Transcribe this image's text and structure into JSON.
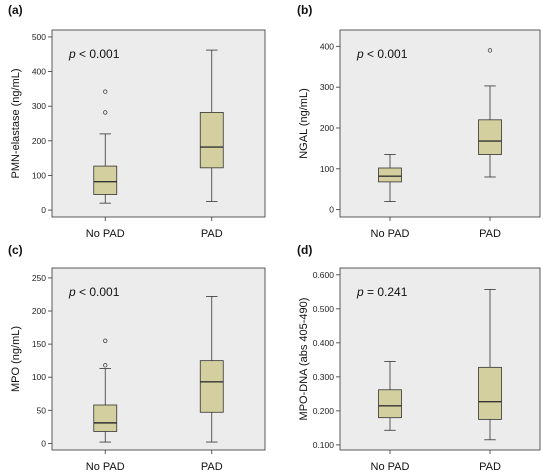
{
  "chart_data": [
    {
      "type": "box",
      "panel": "(a)",
      "ylabel": "PMN-elastase (ng/mL)",
      "ylim": [
        -20,
        520
      ],
      "yticks": [
        "0",
        "100",
        "200",
        "300",
        "400",
        "500"
      ],
      "categories": [
        "No PAD",
        "PAD"
      ],
      "annotation_prefix": "p",
      "annotation_value": " < 0.001",
      "boxes": [
        {
          "category": "No PAD",
          "min": 20,
          "q1": 45,
          "median": 82,
          "q3": 127,
          "max": 220,
          "outliers": [
            282,
            342
          ]
        },
        {
          "category": "PAD",
          "min": 25,
          "q1": 122,
          "median": 182,
          "q3": 282,
          "max": 462,
          "outliers": []
        }
      ]
    },
    {
      "type": "box",
      "panel": "(b)",
      "ylabel": "NGAL (ng/mL)",
      "ylim": [
        -18,
        440
      ],
      "yticks": [
        "0",
        "100",
        "200",
        "300",
        "400"
      ],
      "categories": [
        "No PAD",
        "PAD"
      ],
      "annotation_prefix": "p",
      "annotation_value": " < 0.001",
      "boxes": [
        {
          "category": "No PAD",
          "min": 20,
          "q1": 68,
          "median": 82,
          "q3": 102,
          "max": 135,
          "outliers": []
        },
        {
          "category": "PAD",
          "min": 80,
          "q1": 135,
          "median": 168,
          "q3": 220,
          "max": 303,
          "outliers": [
            390
          ]
        }
      ]
    },
    {
      "type": "box",
      "panel": "(c)",
      "ylabel": "MPO (ng/mL)",
      "ylim": [
        -10,
        265
      ],
      "yticks": [
        "0",
        "50",
        "100",
        "150",
        "200",
        "250"
      ],
      "categories": [
        "No PAD",
        "PAD"
      ],
      "annotation_prefix": "p",
      "annotation_value": " < 0.001",
      "boxes": [
        {
          "category": "No PAD",
          "min": 2,
          "q1": 18,
          "median": 31,
          "q3": 58,
          "max": 113,
          "outliers": [
            118,
            155
          ]
        },
        {
          "category": "PAD",
          "min": 2,
          "q1": 47,
          "median": 93,
          "q3": 125,
          "max": 222,
          "outliers": []
        }
      ]
    },
    {
      "type": "box",
      "panel": "(d)",
      "ylabel": "MPO-DNA (abs 405-490)",
      "ylim": [
        0.085,
        0.62
      ],
      "yticks": [
        "0.100",
        "0.200",
        "0.300",
        "0.400",
        "0.500",
        "0.600"
      ],
      "categories": [
        "No PAD",
        "PAD"
      ],
      "annotation_prefix": "p",
      "annotation_value": " = 0.241",
      "boxes": [
        {
          "category": "No PAD",
          "min": 0.143,
          "q1": 0.18,
          "median": 0.215,
          "q3": 0.262,
          "max": 0.345,
          "outliers": []
        },
        {
          "category": "PAD",
          "min": 0.115,
          "q1": 0.175,
          "median": 0.227,
          "q3": 0.328,
          "max": 0.557,
          "outliers": []
        }
      ]
    }
  ],
  "colors": {
    "plot_bg": "#ececec",
    "box_fill": "#d4cf9f",
    "stroke": "#333333"
  }
}
